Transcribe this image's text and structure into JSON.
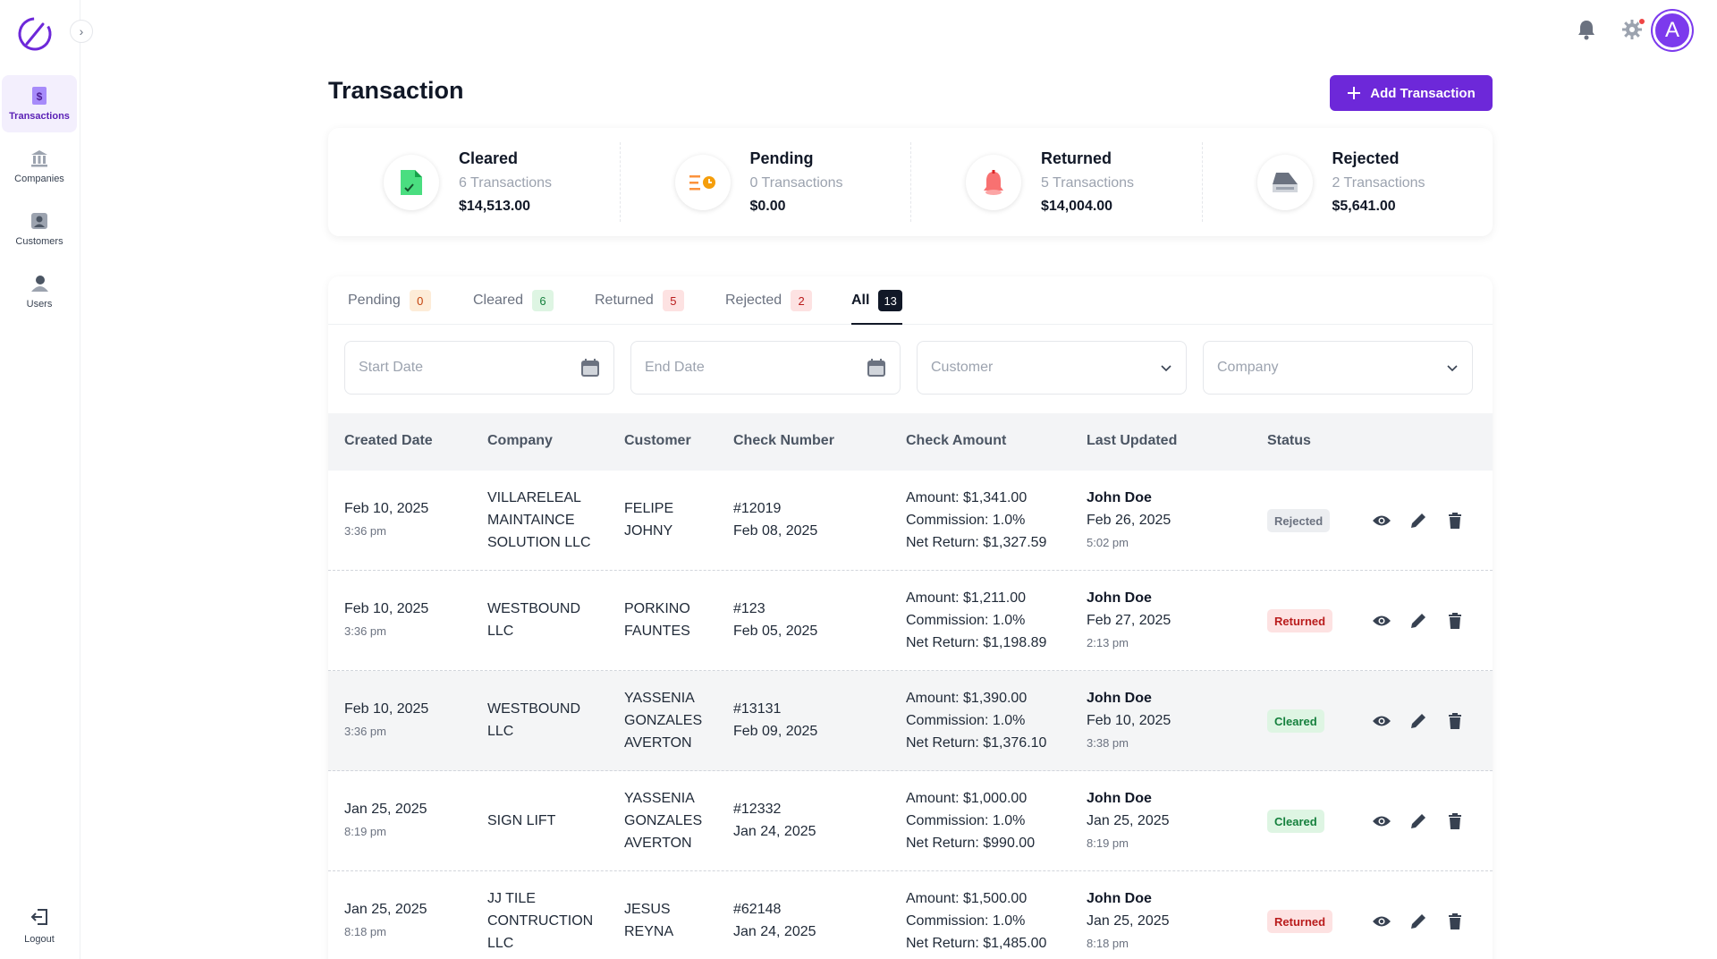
{
  "sidebar": {
    "items": [
      {
        "label": "Transactions",
        "icon": "dollar-doc-icon",
        "active": true
      },
      {
        "label": "Companies",
        "icon": "bank-icon"
      },
      {
        "label": "Customers",
        "icon": "customer-icon"
      },
      {
        "label": "Users",
        "icon": "users-icon"
      }
    ],
    "logout_label": "Logout"
  },
  "header": {
    "avatar_letter": "A"
  },
  "page": {
    "title": "Transaction",
    "add_button_label": "Add Transaction"
  },
  "stats": [
    {
      "title": "Cleared",
      "count": "6 Transactions",
      "amount": "$14,513.00"
    },
    {
      "title": "Pending",
      "count": "0 Transactions",
      "amount": "$0.00"
    },
    {
      "title": "Returned",
      "count": "5 Transactions",
      "amount": "$14,004.00"
    },
    {
      "title": "Rejected",
      "count": "2 Transactions",
      "amount": "$5,641.00"
    }
  ],
  "tabs": [
    {
      "label": "Pending",
      "count": "0"
    },
    {
      "label": "Cleared",
      "count": "6"
    },
    {
      "label": "Returned",
      "count": "5"
    },
    {
      "label": "Rejected",
      "count": "2"
    },
    {
      "label": "All",
      "count": "13"
    }
  ],
  "filters": {
    "start_date": "Start Date",
    "end_date": "End Date",
    "customer": "Customer",
    "company": "Company"
  },
  "table": {
    "columns": [
      "Created Date",
      "Company",
      "Customer",
      "Check Number",
      "Check Amount",
      "Last Updated",
      "Status"
    ],
    "rows": [
      {
        "date": "Feb 10, 2025",
        "time": "3:36 pm",
        "company": [
          "VILLARELEAL",
          "MAINTAINCE",
          "SOLUTION LLC"
        ],
        "customer": [
          "FELIPE",
          "JOHNY"
        ],
        "check_no": "#12019",
        "check_date": "Feb 08, 2025",
        "amount": "Amount: $1,341.00",
        "commission": "Commission: 1.0%",
        "net": "Net Return: $1,327.59",
        "updated_by": "John Doe",
        "updated_date": "Feb 26, 2025",
        "updated_time": "5:02 pm",
        "status": "Rejected"
      },
      {
        "date": "Feb 10, 2025",
        "time": "3:36 pm",
        "company": [
          "WESTBOUND",
          "LLC"
        ],
        "customer": [
          "PORKINO",
          "FAUNTES"
        ],
        "check_no": "#123",
        "check_date": "Feb 05, 2025",
        "amount": "Amount: $1,211.00",
        "commission": "Commission: 1.0%",
        "net": "Net Return: $1,198.89",
        "updated_by": "John Doe",
        "updated_date": "Feb 27, 2025",
        "updated_time": "2:13 pm",
        "status": "Returned"
      },
      {
        "date": "Feb 10, 2025",
        "time": "3:36 pm",
        "company": [
          "WESTBOUND",
          "LLC"
        ],
        "customer": [
          "YASSENIA",
          "GONZALES",
          "AVERTON"
        ],
        "check_no": "#13131",
        "check_date": "Feb 09, 2025",
        "amount": "Amount: $1,390.00",
        "commission": "Commission: 1.0%",
        "net": "Net Return: $1,376.10",
        "updated_by": "John Doe",
        "updated_date": "Feb 10, 2025",
        "updated_time": "3:38 pm",
        "status": "Cleared"
      },
      {
        "date": "Jan 25, 2025",
        "time": "8:19 pm",
        "company": [
          "SIGN LIFT"
        ],
        "customer": [
          "YASSENIA",
          "GONZALES",
          "AVERTON"
        ],
        "check_no": "#12332",
        "check_date": "Jan 24, 2025",
        "amount": "Amount: $1,000.00",
        "commission": "Commission: 1.0%",
        "net": "Net Return: $990.00",
        "updated_by": "John Doe",
        "updated_date": "Jan 25, 2025",
        "updated_time": "8:19 pm",
        "status": "Cleared"
      },
      {
        "date": "Jan 25, 2025",
        "time": "8:18 pm",
        "company": [
          "JJ TILE",
          "CONTRUCTION",
          "LLC"
        ],
        "customer": [
          "JESUS",
          "REYNA"
        ],
        "check_no": "#62148",
        "check_date": "Jan 24, 2025",
        "amount": "Amount: $1,500.00",
        "commission": "Commission: 1.0%",
        "net": "Net Return: $1,485.00",
        "updated_by": "John Doe",
        "updated_date": "Jan 25, 2025",
        "updated_time": "8:18 pm",
        "status": "Returned"
      }
    ]
  }
}
